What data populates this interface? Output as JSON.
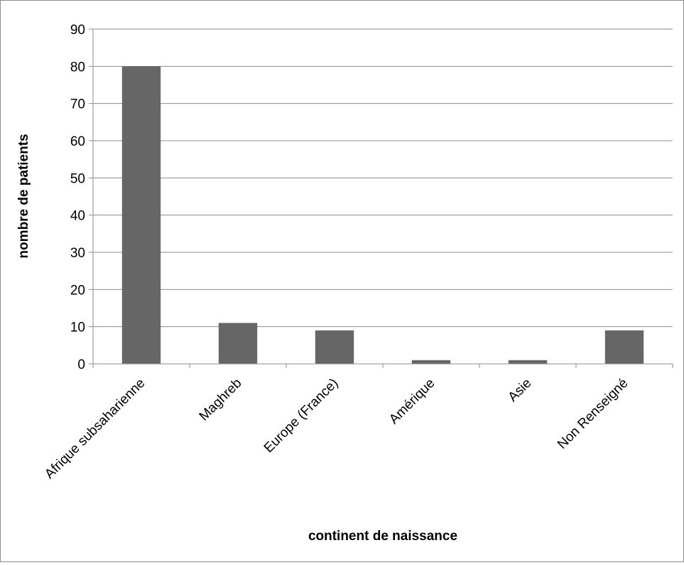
{
  "chart_data": {
    "type": "bar",
    "categories": [
      "Afrique subsaharienne",
      "Maghreb",
      "Europe (France)",
      "Amérique",
      "Asie",
      "Non Renseigné"
    ],
    "series": [
      {
        "values": [
          80,
          11,
          9,
          1,
          1,
          9
        ]
      }
    ],
    "xlabel": "continent de naissance",
    "ylabel": "nombre de patients",
    "ylim": [
      0,
      90
    ],
    "yticks": [
      0,
      10,
      20,
      30,
      40,
      50,
      60,
      70,
      80,
      90
    ],
    "grid": true,
    "legend": "none",
    "colors": {
      "bar": "#666666",
      "grid": "#8c8c8c",
      "axis": "#8c8c8c"
    }
  }
}
